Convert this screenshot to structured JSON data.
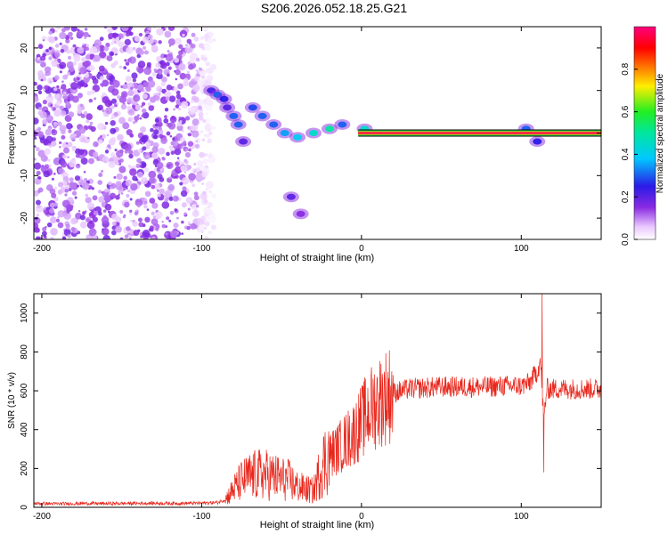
{
  "title": "S206.2026.052.18.25.G21",
  "chart_data": [
    {
      "type": "heatmap",
      "xlabel": "Height of straight line (km)",
      "ylabel": "Frequency (Hz)",
      "xlim": [
        -205,
        150
      ],
      "ylim": [
        -25,
        25
      ],
      "xticks": [
        -200,
        -100,
        0,
        100
      ],
      "yticks": [
        -20,
        -10,
        0,
        10,
        20
      ],
      "colorbar": {
        "label": "Normalized spectral amplitude",
        "range": [
          0,
          1
        ],
        "ticks": [
          0.0,
          0.2,
          0.4,
          0.6,
          0.8
        ],
        "tick_labels": [
          "0.0",
          "0.2",
          "0.4",
          "0.6",
          "0.8"
        ]
      },
      "features": {
        "noise_region_x": [
          -205,
          -92
        ],
        "line_at_zero_freq_x": [
          -2,
          150
        ],
        "blobs": [
          {
            "x": -94,
            "y": 10,
            "v": 0.22
          },
          {
            "x": -90,
            "y": 9,
            "v": 0.3
          },
          {
            "x": -86,
            "y": 8,
            "v": 0.25
          },
          {
            "x": -84,
            "y": 6,
            "v": 0.2
          },
          {
            "x": -80,
            "y": 4,
            "v": 0.3
          },
          {
            "x": -77,
            "y": 2,
            "v": 0.3
          },
          {
            "x": -74,
            "y": -2,
            "v": 0.2
          },
          {
            "x": -68,
            "y": 6,
            "v": 0.28
          },
          {
            "x": -62,
            "y": 4,
            "v": 0.3
          },
          {
            "x": -55,
            "y": 2,
            "v": 0.3
          },
          {
            "x": -48,
            "y": 0,
            "v": 0.35
          },
          {
            "x": -40,
            "y": -1,
            "v": 0.4
          },
          {
            "x": -30,
            "y": 0,
            "v": 0.45
          },
          {
            "x": -20,
            "y": 1,
            "v": 0.5
          },
          {
            "x": -12,
            "y": 2,
            "v": 0.3
          },
          {
            "x": 2,
            "y": 1,
            "v": 0.45
          },
          {
            "x": 103,
            "y": 1,
            "v": 0.3
          },
          {
            "x": 110,
            "y": -2,
            "v": 0.25
          },
          {
            "x": -44,
            "y": -15,
            "v": 0.2
          },
          {
            "x": -38,
            "y": -19,
            "v": 0.15
          }
        ]
      }
    },
    {
      "type": "line",
      "xlabel": "Height of straight line (km)",
      "ylabel": "SNR (10 * v/v)",
      "xlim": [
        -205,
        150
      ],
      "ylim": [
        0,
        1100
      ],
      "xticks": [
        -200,
        -100,
        0,
        100
      ],
      "yticks": [
        0,
        200,
        400,
        600,
        800,
        1000
      ],
      "color": "#e8271c",
      "series": [
        {
          "name": "SNR",
          "x": [
            -205,
            -190,
            -175,
            -160,
            -145,
            -130,
            -115,
            -100,
            -90,
            -85,
            -80,
            -75,
            -70,
            -65,
            -60,
            -55,
            -50,
            -45,
            -40,
            -35,
            -30,
            -25,
            -20,
            -15,
            -10,
            -5,
            0,
            5,
            10,
            15,
            20,
            25,
            30,
            40,
            50,
            60,
            70,
            80,
            90,
            100,
            105,
            110,
            112,
            114,
            116,
            120,
            130,
            140,
            150
          ],
          "y": [
            20,
            18,
            20,
            19,
            20,
            21,
            20,
            22,
            25,
            40,
            90,
            130,
            150,
            160,
            160,
            150,
            140,
            130,
            100,
            90,
            80,
            200,
            270,
            300,
            340,
            380,
            440,
            500,
            540,
            570,
            590,
            600,
            610,
            615,
            620,
            620,
            620,
            620,
            625,
            625,
            640,
            700,
            750,
            450,
            610,
            610,
            610,
            610,
            610
          ]
        }
      ],
      "spikes": [
        {
          "x": 113,
          "y": 1100
        },
        {
          "x": 114,
          "y": 180
        }
      ]
    }
  ]
}
